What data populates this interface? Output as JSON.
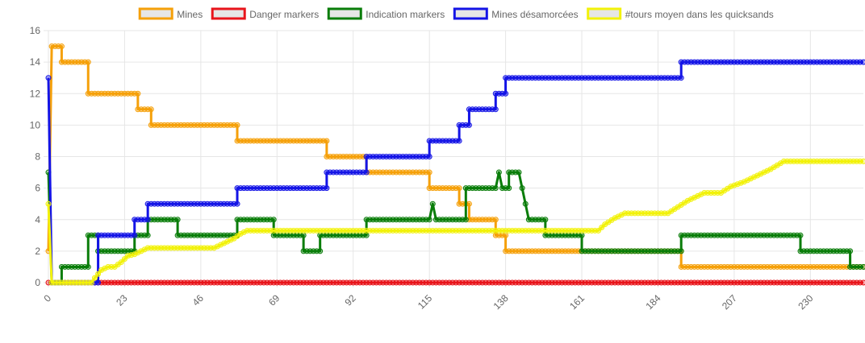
{
  "chart_data": {
    "type": "line",
    "title": "",
    "xlabel": "",
    "ylabel": "",
    "ylim": [
      0,
      16
    ],
    "xlim": [
      0,
      246
    ],
    "y_ticks": [
      0,
      2,
      4,
      6,
      8,
      10,
      12,
      14,
      16
    ],
    "x_ticks": [
      0,
      23,
      46,
      69,
      92,
      115,
      138,
      161,
      184,
      207,
      230
    ],
    "grid": true,
    "legend_position": "top",
    "series": [
      {
        "name": "Mines",
        "color": "#f5a00a",
        "points": [
          [
            0,
            2
          ],
          [
            1,
            15
          ],
          [
            4,
            15
          ],
          [
            4,
            14
          ],
          [
            12,
            14
          ],
          [
            12,
            12
          ],
          [
            27,
            12
          ],
          [
            27,
            11
          ],
          [
            31,
            11
          ],
          [
            31,
            10
          ],
          [
            57,
            10
          ],
          [
            57,
            9
          ],
          [
            84,
            9
          ],
          [
            84,
            8
          ],
          [
            96,
            8
          ],
          [
            96,
            7
          ],
          [
            115,
            7
          ],
          [
            115,
            6
          ],
          [
            124,
            6
          ],
          [
            124,
            5
          ],
          [
            127,
            5
          ],
          [
            127,
            4
          ],
          [
            135,
            4
          ],
          [
            135,
            3
          ],
          [
            138,
            3
          ],
          [
            138,
            2
          ],
          [
            191,
            2
          ],
          [
            191,
            1
          ],
          [
            246,
            1
          ]
        ]
      },
      {
        "name": "Danger markers",
        "color": "#e8141b",
        "points": [
          [
            0,
            0
          ],
          [
            246,
            0
          ]
        ]
      },
      {
        "name": "Indication markers",
        "color": "#0a7d0a",
        "points": [
          [
            0,
            7
          ],
          [
            1,
            0
          ],
          [
            4,
            0
          ],
          [
            4,
            1
          ],
          [
            12,
            1
          ],
          [
            12,
            3
          ],
          [
            15,
            3
          ],
          [
            15,
            2
          ],
          [
            26,
            2
          ],
          [
            26,
            3
          ],
          [
            30,
            3
          ],
          [
            30,
            4
          ],
          [
            39,
            4
          ],
          [
            39,
            3
          ],
          [
            57,
            3
          ],
          [
            57,
            4
          ],
          [
            68,
            4
          ],
          [
            68,
            3
          ],
          [
            77,
            3
          ],
          [
            77,
            2
          ],
          [
            82,
            2
          ],
          [
            82,
            3
          ],
          [
            96,
            3
          ],
          [
            96,
            4
          ],
          [
            115,
            4
          ],
          [
            116,
            5
          ],
          [
            117,
            4
          ],
          [
            126,
            4
          ],
          [
            126,
            6
          ],
          [
            135,
            6
          ],
          [
            136,
            7
          ],
          [
            137,
            6
          ],
          [
            139,
            6
          ],
          [
            139,
            7
          ],
          [
            142,
            7
          ],
          [
            143,
            6
          ],
          [
            144,
            5
          ],
          [
            145,
            4
          ],
          [
            150,
            4
          ],
          [
            150,
            3
          ],
          [
            161,
            3
          ],
          [
            161,
            2
          ],
          [
            191,
            2
          ],
          [
            191,
            3
          ],
          [
            227,
            3
          ],
          [
            227,
            2
          ],
          [
            242,
            2
          ],
          [
            242,
            1
          ],
          [
            246,
            1
          ]
        ]
      },
      {
        "name": "Mines désamorcées",
        "color": "#1414e6",
        "points": [
          [
            0,
            13
          ],
          [
            1,
            0
          ],
          [
            15,
            0
          ],
          [
            15,
            3
          ],
          [
            26,
            3
          ],
          [
            26,
            4
          ],
          [
            30,
            4
          ],
          [
            30,
            5
          ],
          [
            57,
            5
          ],
          [
            57,
            6
          ],
          [
            84,
            6
          ],
          [
            84,
            7
          ],
          [
            96,
            7
          ],
          [
            96,
            8
          ],
          [
            115,
            8
          ],
          [
            115,
            9
          ],
          [
            124,
            9
          ],
          [
            124,
            10
          ],
          [
            127,
            10
          ],
          [
            127,
            11
          ],
          [
            135,
            11
          ],
          [
            135,
            12
          ],
          [
            138,
            12
          ],
          [
            138,
            13
          ],
          [
            191,
            13
          ],
          [
            191,
            14
          ],
          [
            246,
            14
          ]
        ]
      },
      {
        "name": "#tours moyen dans les quicksands",
        "color": "#f2f20a",
        "points": [
          [
            0,
            5
          ],
          [
            1,
            0
          ],
          [
            13,
            0
          ],
          [
            14,
            0.3
          ],
          [
            16,
            0.8
          ],
          [
            18,
            1
          ],
          [
            20,
            1
          ],
          [
            22,
            1.3
          ],
          [
            24,
            1.7
          ],
          [
            26,
            1.8
          ],
          [
            28,
            2
          ],
          [
            30,
            2.2
          ],
          [
            50,
            2.2
          ],
          [
            53,
            2.5
          ],
          [
            56,
            2.8
          ],
          [
            58,
            3.1
          ],
          [
            60,
            3.3
          ],
          [
            166,
            3.3
          ],
          [
            168,
            3.7
          ],
          [
            171,
            4.1
          ],
          [
            174,
            4.4
          ],
          [
            187,
            4.4
          ],
          [
            190,
            4.8
          ],
          [
            193,
            5.2
          ],
          [
            196,
            5.5
          ],
          [
            198,
            5.7
          ],
          [
            203,
            5.7
          ],
          [
            206,
            6.1
          ],
          [
            210,
            6.4
          ],
          [
            214,
            6.8
          ],
          [
            218,
            7.2
          ],
          [
            222,
            7.7
          ],
          [
            246,
            7.7
          ]
        ]
      }
    ]
  }
}
